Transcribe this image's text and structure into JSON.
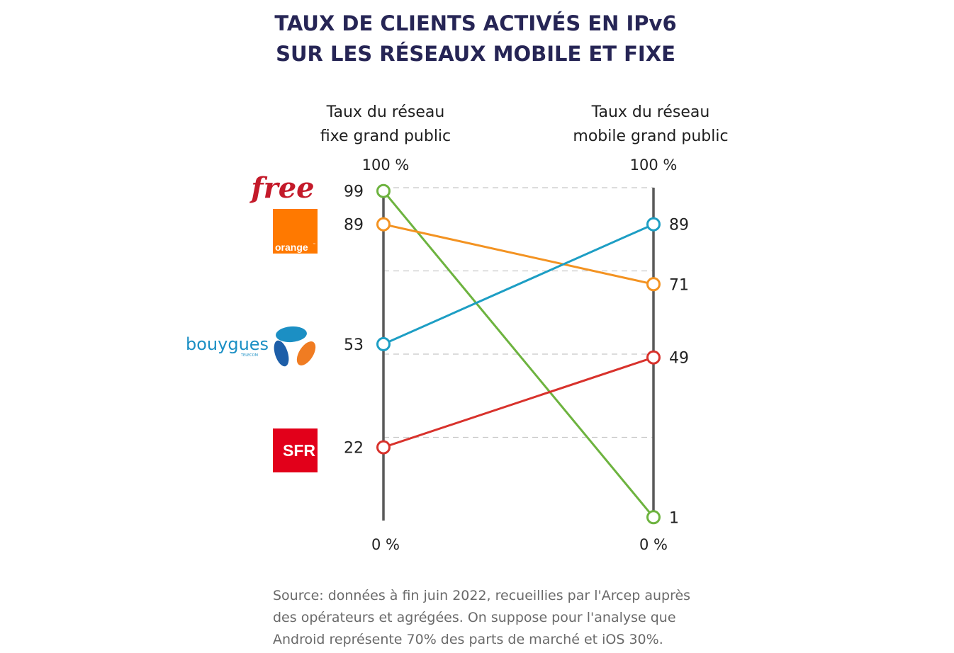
{
  "chart_data": {
    "type": "slope",
    "title_lines": [
      "TAUX DE CLIENTS ACTIVÉS EN IPv6",
      "SUR LES RÉSEAUX MOBILE ET FIXE"
    ],
    "axes": [
      {
        "id": "fixe",
        "label_lines": [
          "Taux du réseau",
          "fixe grand public"
        ],
        "top_label": "100 %",
        "bottom_label": "0 %"
      },
      {
        "id": "mobile",
        "label_lines": [
          "Taux du réseau",
          "mobile grand public"
        ],
        "top_label": "100 %",
        "bottom_label": "0 %"
      }
    ],
    "ylim": [
      0,
      100
    ],
    "gridlines": [
      100,
      75,
      50,
      25,
      0
    ],
    "series": [
      {
        "name": "Free",
        "color": "#6db33f",
        "fixe": 99,
        "mobile": 1
      },
      {
        "name": "Orange",
        "color": "#f39322",
        "fixe": 89,
        "mobile": 71
      },
      {
        "name": "Bouygues Telecom",
        "color": "#1d9ec4",
        "fixe": 53,
        "mobile": 89
      },
      {
        "name": "SFR",
        "color": "#d8322c",
        "fixe": 22,
        "mobile": 49
      }
    ],
    "source_lines": [
      "Source: données à fin juin 2022, recueillies par l'Arcep auprès",
      "des opérateurs et agrégées. On suppose pour l'analyse que",
      "Android représente 70% des parts de marché et iOS 30%."
    ]
  },
  "logos": {
    "free": {
      "text": "free",
      "color": "#c41a2a"
    },
    "orange": {
      "text": "orange",
      "tm": "™",
      "color": "#ff7900"
    },
    "bouygues": {
      "text": "bouygues",
      "sub": "TELECOM",
      "color": "#1b8fc4",
      "blue": "#1d5ea8",
      "orange": "#f07c22"
    },
    "sfr": {
      "text": "SFR",
      "color": "#e2001a"
    }
  },
  "colors": {
    "axis": "#595959",
    "grid": "#c8c8c8",
    "title": "#262555"
  }
}
